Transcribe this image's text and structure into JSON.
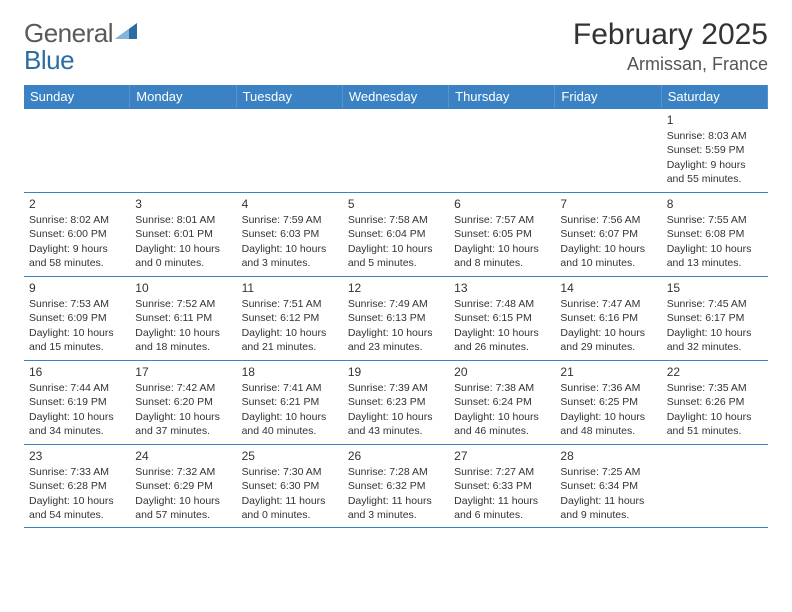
{
  "brand": {
    "part1": "General",
    "part2": "Blue"
  },
  "colors": {
    "header_bg": "#3b82c4",
    "header_fg": "#ffffff",
    "rule": "#3b82c4",
    "brand_gray": "#5a5a5a",
    "brand_blue": "#2b6ca3",
    "text": "#333333",
    "bg": "#ffffff"
  },
  "title": "February 2025",
  "location": "Armissan, France",
  "day_names": [
    "Sunday",
    "Monday",
    "Tuesday",
    "Wednesday",
    "Thursday",
    "Friday",
    "Saturday"
  ],
  "weeks": [
    [
      null,
      null,
      null,
      null,
      null,
      null,
      {
        "n": "1",
        "sr": "8:03 AM",
        "ss": "5:59 PM",
        "dl": "9 hours and 55 minutes."
      }
    ],
    [
      {
        "n": "2",
        "sr": "8:02 AM",
        "ss": "6:00 PM",
        "dl": "9 hours and 58 minutes."
      },
      {
        "n": "3",
        "sr": "8:01 AM",
        "ss": "6:01 PM",
        "dl": "10 hours and 0 minutes."
      },
      {
        "n": "4",
        "sr": "7:59 AM",
        "ss": "6:03 PM",
        "dl": "10 hours and 3 minutes."
      },
      {
        "n": "5",
        "sr": "7:58 AM",
        "ss": "6:04 PM",
        "dl": "10 hours and 5 minutes."
      },
      {
        "n": "6",
        "sr": "7:57 AM",
        "ss": "6:05 PM",
        "dl": "10 hours and 8 minutes."
      },
      {
        "n": "7",
        "sr": "7:56 AM",
        "ss": "6:07 PM",
        "dl": "10 hours and 10 minutes."
      },
      {
        "n": "8",
        "sr": "7:55 AM",
        "ss": "6:08 PM",
        "dl": "10 hours and 13 minutes."
      }
    ],
    [
      {
        "n": "9",
        "sr": "7:53 AM",
        "ss": "6:09 PM",
        "dl": "10 hours and 15 minutes."
      },
      {
        "n": "10",
        "sr": "7:52 AM",
        "ss": "6:11 PM",
        "dl": "10 hours and 18 minutes."
      },
      {
        "n": "11",
        "sr": "7:51 AM",
        "ss": "6:12 PM",
        "dl": "10 hours and 21 minutes."
      },
      {
        "n": "12",
        "sr": "7:49 AM",
        "ss": "6:13 PM",
        "dl": "10 hours and 23 minutes."
      },
      {
        "n": "13",
        "sr": "7:48 AM",
        "ss": "6:15 PM",
        "dl": "10 hours and 26 minutes."
      },
      {
        "n": "14",
        "sr": "7:47 AM",
        "ss": "6:16 PM",
        "dl": "10 hours and 29 minutes."
      },
      {
        "n": "15",
        "sr": "7:45 AM",
        "ss": "6:17 PM",
        "dl": "10 hours and 32 minutes."
      }
    ],
    [
      {
        "n": "16",
        "sr": "7:44 AM",
        "ss": "6:19 PM",
        "dl": "10 hours and 34 minutes."
      },
      {
        "n": "17",
        "sr": "7:42 AM",
        "ss": "6:20 PM",
        "dl": "10 hours and 37 minutes."
      },
      {
        "n": "18",
        "sr": "7:41 AM",
        "ss": "6:21 PM",
        "dl": "10 hours and 40 minutes."
      },
      {
        "n": "19",
        "sr": "7:39 AM",
        "ss": "6:23 PM",
        "dl": "10 hours and 43 minutes."
      },
      {
        "n": "20",
        "sr": "7:38 AM",
        "ss": "6:24 PM",
        "dl": "10 hours and 46 minutes."
      },
      {
        "n": "21",
        "sr": "7:36 AM",
        "ss": "6:25 PM",
        "dl": "10 hours and 48 minutes."
      },
      {
        "n": "22",
        "sr": "7:35 AM",
        "ss": "6:26 PM",
        "dl": "10 hours and 51 minutes."
      }
    ],
    [
      {
        "n": "23",
        "sr": "7:33 AM",
        "ss": "6:28 PM",
        "dl": "10 hours and 54 minutes."
      },
      {
        "n": "24",
        "sr": "7:32 AM",
        "ss": "6:29 PM",
        "dl": "10 hours and 57 minutes."
      },
      {
        "n": "25",
        "sr": "7:30 AM",
        "ss": "6:30 PM",
        "dl": "11 hours and 0 minutes."
      },
      {
        "n": "26",
        "sr": "7:28 AM",
        "ss": "6:32 PM",
        "dl": "11 hours and 3 minutes."
      },
      {
        "n": "27",
        "sr": "7:27 AM",
        "ss": "6:33 PM",
        "dl": "11 hours and 6 minutes."
      },
      {
        "n": "28",
        "sr": "7:25 AM",
        "ss": "6:34 PM",
        "dl": "11 hours and 9 minutes."
      },
      null
    ]
  ],
  "labels": {
    "sunrise": "Sunrise:",
    "sunset": "Sunset:",
    "daylight": "Daylight:"
  }
}
